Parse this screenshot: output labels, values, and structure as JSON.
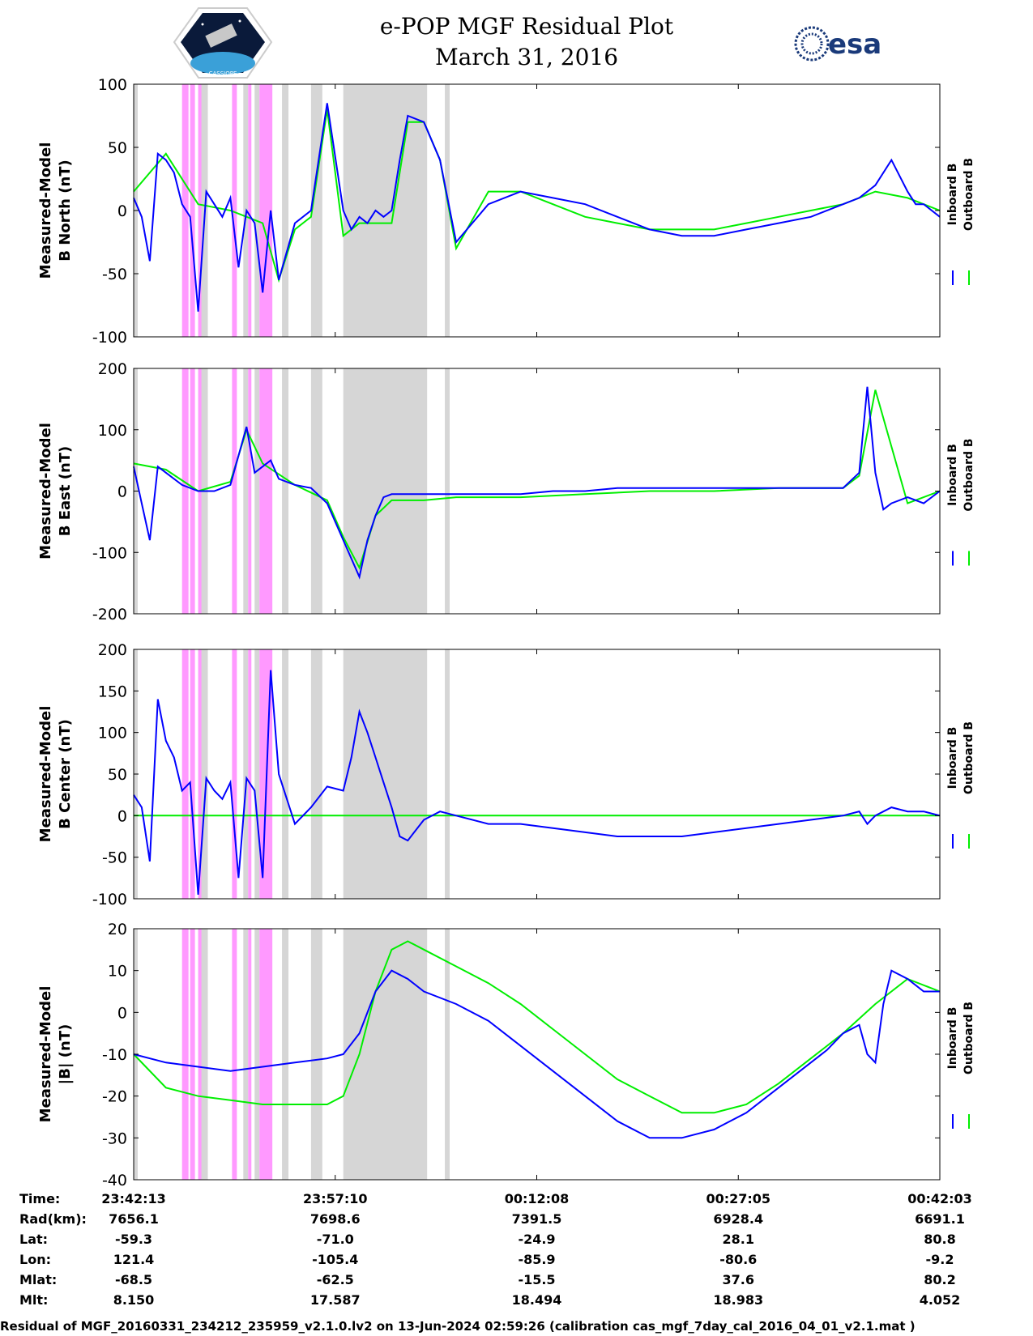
{
  "header": {
    "title_line1": "e-POP MGF Residual Plot",
    "title_line2": "March 31, 2016",
    "left_logo_text": "CASSIOPE",
    "right_logo_text": "esa"
  },
  "colors": {
    "inboard": "#0000ff",
    "outboard": "#00ee00",
    "gray_band": "#d6d6d6",
    "pink_band": "#ff99ff"
  },
  "chart_data": [
    {
      "type": "line",
      "title": "",
      "ylabel_line1": "Measured-Model",
      "ylabel_line2": "B North (nT)",
      "ylim": [
        -100,
        100
      ],
      "yticks": [
        -100,
        -50,
        0,
        50,
        100
      ],
      "legend": [
        "Inboard B",
        "Outboard B"
      ],
      "legend_placement": "right",
      "series": [
        {
          "name": "Inboard B",
          "color": "#0000ff",
          "x": [
            0,
            0.5,
            1,
            1.5,
            2,
            2.5,
            3,
            3.5,
            4,
            4.5,
            5,
            5.5,
            6,
            6.5,
            7,
            7.5,
            8,
            8.5,
            9,
            10,
            11,
            12,
            13,
            13.5,
            14,
            14.5,
            15,
            15.5,
            16,
            16.5,
            17,
            18,
            19,
            20,
            22,
            24,
            26,
            28,
            30,
            32,
            34,
            36,
            38,
            40,
            42,
            44,
            45,
            46,
            47,
            48,
            48.5,
            49,
            50
          ],
          "y": [
            10,
            -5,
            -40,
            45,
            40,
            30,
            5,
            -5,
            -80,
            15,
            5,
            -5,
            10,
            -45,
            0,
            -10,
            -65,
            0,
            -55,
            -10,
            0,
            85,
            0,
            -15,
            -5,
            -10,
            0,
            -5,
            0,
            40,
            75,
            70,
            40,
            -25,
            5,
            15,
            10,
            5,
            -5,
            -15,
            -20,
            -20,
            -15,
            -10,
            -5,
            5,
            10,
            20,
            40,
            15,
            5,
            5,
            -5
          ]
        },
        {
          "name": "Outboard B",
          "color": "#00ee00",
          "x": [
            0,
            2,
            4,
            6,
            8,
            9,
            10,
            11,
            12,
            13,
            14,
            15,
            16,
            17,
            18,
            19,
            20,
            22,
            24,
            26,
            28,
            30,
            32,
            34,
            36,
            38,
            40,
            42,
            44,
            46,
            48,
            50
          ],
          "y": [
            15,
            45,
            5,
            0,
            -10,
            -55,
            -15,
            -5,
            80,
            -20,
            -10,
            -10,
            -10,
            70,
            70,
            40,
            -30,
            15,
            15,
            5,
            -5,
            -10,
            -15,
            -15,
            -15,
            -10,
            -5,
            0,
            5,
            15,
            10,
            0
          ]
        }
      ]
    },
    {
      "type": "line",
      "title": "",
      "ylabel_line1": "Measured-Model",
      "ylabel_line2": "B East (nT)",
      "ylim": [
        -200,
        200
      ],
      "yticks": [
        -200,
        -100,
        0,
        100,
        200
      ],
      "legend": [
        "Inboard B",
        "Outboard B"
      ],
      "legend_placement": "right",
      "series": [
        {
          "name": "Inboard B",
          "color": "#0000ff",
          "x": [
            0,
            0.5,
            1,
            1.5,
            2,
            3,
            4,
            5,
            6,
            7,
            7.5,
            8,
            8.5,
            9,
            10,
            11,
            12,
            13,
            14,
            14.5,
            15,
            15.5,
            16,
            16.5,
            17,
            18,
            19,
            20,
            22,
            24,
            26,
            28,
            30,
            32,
            34,
            36,
            38,
            40,
            42,
            44,
            45,
            45.5,
            46,
            46.5,
            47,
            48,
            49,
            50
          ],
          "y": [
            40,
            -20,
            -80,
            40,
            30,
            10,
            0,
            0,
            10,
            105,
            30,
            40,
            50,
            20,
            10,
            5,
            -20,
            -80,
            -140,
            -80,
            -40,
            -10,
            -5,
            -5,
            -5,
            -5,
            -5,
            -5,
            -5,
            -5,
            0,
            0,
            5,
            5,
            5,
            5,
            5,
            5,
            5,
            5,
            30,
            170,
            30,
            -30,
            -20,
            -10,
            -20,
            0
          ]
        },
        {
          "name": "Outboard B",
          "color": "#00ee00",
          "x": [
            0,
            2,
            4,
            6,
            7,
            8,
            10,
            12,
            13,
            14,
            15,
            16,
            18,
            20,
            24,
            28,
            32,
            36,
            40,
            44,
            45,
            46,
            48,
            50
          ],
          "y": [
            45,
            35,
            0,
            15,
            100,
            45,
            10,
            -15,
            -75,
            -125,
            -40,
            -15,
            -15,
            -10,
            -10,
            -5,
            0,
            0,
            5,
            5,
            25,
            165,
            -20,
            0
          ]
        }
      ]
    },
    {
      "type": "line",
      "title": "",
      "ylabel_line1": "Measured-Model",
      "ylabel_line2": "B Center (nT)",
      "ylim": [
        -100,
        200
      ],
      "yticks": [
        -100,
        -50,
        0,
        50,
        100,
        150,
        200
      ],
      "legend": [
        "Inboard B",
        "Outboard B"
      ],
      "legend_placement": "right",
      "series": [
        {
          "name": "Inboard B",
          "color": "#0000ff",
          "x": [
            0,
            0.5,
            1,
            1.5,
            2,
            2.5,
            3,
            3.5,
            4,
            4.5,
            5,
            5.5,
            6,
            6.5,
            7,
            7.5,
            8,
            8.5,
            9,
            10,
            11,
            12,
            13,
            13.5,
            14,
            14.5,
            15,
            15.5,
            16,
            16.5,
            17,
            18,
            19,
            20,
            22,
            24,
            26,
            28,
            30,
            32,
            34,
            36,
            38,
            40,
            42,
            44,
            45,
            45.5,
            46,
            47,
            48,
            49,
            50
          ],
          "y": [
            25,
            10,
            -55,
            140,
            90,
            70,
            30,
            40,
            -95,
            45,
            30,
            20,
            40,
            -75,
            45,
            30,
            -75,
            175,
            50,
            -10,
            10,
            35,
            30,
            70,
            125,
            100,
            70,
            40,
            10,
            -25,
            -30,
            -5,
            5,
            0,
            -10,
            -10,
            -15,
            -20,
            -25,
            -25,
            -25,
            -20,
            -15,
            -10,
            -5,
            0,
            5,
            -10,
            0,
            10,
            5,
            5,
            0
          ]
        },
        {
          "name": "Outboard B",
          "color": "#00ee00",
          "x": [
            0,
            50
          ],
          "y": [
            0,
            0
          ]
        }
      ]
    },
    {
      "type": "line",
      "title": "",
      "ylabel_line1": "Measured-Model",
      "ylabel_line2": "|B| (nT)",
      "ylim": [
        -40,
        20
      ],
      "yticks": [
        -40,
        -30,
        -20,
        -10,
        0,
        10,
        20
      ],
      "legend": [
        "Inboard B",
        "Outboard B"
      ],
      "legend_placement": "right",
      "series": [
        {
          "name": "Inboard B",
          "color": "#0000ff",
          "x": [
            0,
            2,
            4,
            6,
            8,
            10,
            12,
            13,
            14,
            15,
            16,
            17,
            18,
            20,
            22,
            24,
            26,
            28,
            30,
            32,
            34,
            36,
            38,
            40,
            42,
            43,
            44,
            45,
            45.5,
            46,
            46.5,
            47,
            48,
            49,
            50
          ],
          "y": [
            -10,
            -12,
            -13,
            -14,
            -13,
            -12,
            -11,
            -10,
            -5,
            5,
            10,
            8,
            5,
            2,
            -2,
            -8,
            -14,
            -20,
            -26,
            -30,
            -30,
            -28,
            -24,
            -18,
            -12,
            -9,
            -5,
            -3,
            -10,
            -12,
            2,
            10,
            8,
            5,
            5
          ]
        },
        {
          "name": "Outboard B",
          "color": "#00ee00",
          "x": [
            0,
            2,
            4,
            6,
            8,
            10,
            12,
            13,
            14,
            15,
            16,
            17,
            18,
            20,
            22,
            24,
            26,
            28,
            30,
            32,
            34,
            36,
            38,
            40,
            42,
            44,
            46,
            48,
            50
          ],
          "y": [
            -10,
            -18,
            -20,
            -21,
            -22,
            -22,
            -22,
            -20,
            -10,
            5,
            15,
            17,
            15,
            11,
            7,
            2,
            -4,
            -10,
            -16,
            -20,
            -24,
            -24,
            -22,
            -17,
            -11,
            -5,
            2,
            8,
            5
          ]
        }
      ]
    }
  ],
  "x_axis": {
    "labels": [
      "23:42:13",
      "23:57:10",
      "00:12:08",
      "00:27:05",
      "00:42:03"
    ],
    "label_positions": [
      0,
      15,
      30,
      45,
      60
    ]
  },
  "ephemeris": {
    "rows": [
      {
        "label": "Time:",
        "values": [
          "23:42:13",
          "23:57:10",
          "00:12:08",
          "00:27:05",
          "00:42:03"
        ]
      },
      {
        "label": "Rad(km):",
        "values": [
          "7656.1",
          "7698.6",
          "7391.5",
          "6928.4",
          "6691.1"
        ]
      },
      {
        "label": "Lat:",
        "values": [
          "-59.3",
          "-71.0",
          "-24.9",
          "28.1",
          "80.8"
        ]
      },
      {
        "label": "Lon:",
        "values": [
          "121.4",
          "-105.4",
          "-85.9",
          "-80.6",
          "-9.2"
        ]
      },
      {
        "label": "Mlat:",
        "values": [
          "-68.5",
          "-62.5",
          "-15.5",
          "37.6",
          "80.2"
        ]
      },
      {
        "label": "Mlt:",
        "values": [
          "8.150",
          "17.587",
          "18.494",
          "18.983",
          "4.052"
        ]
      }
    ]
  },
  "footer": {
    "text": "Residual of MGF_20160331_234212_235959_v2.1.0.lv2 on 13-Jun-2024 02:59:26 (calibration cas_mgf_7day_cal_2016_04_01_v2.1.mat )"
  }
}
